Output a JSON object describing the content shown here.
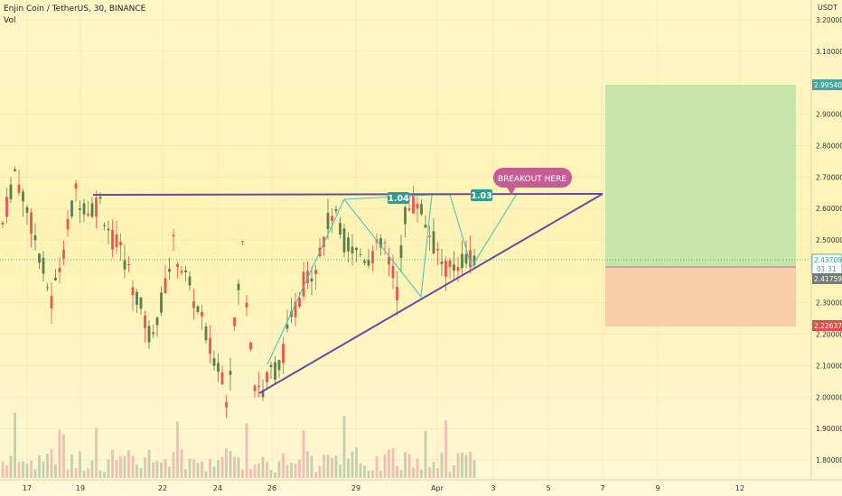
{
  "header": {
    "title": "Enjin Coin / TetherUS, 30, BINANCE",
    "volume_label": "Vol",
    "currency": "USDT"
  },
  "colors": {
    "bg_top": "#fff6c8",
    "bg_bottom": "#fdf5cf",
    "up": "#ef5350",
    "down": "#5a7f4f",
    "trendline": "#6a4aa0",
    "pattern": "#4fc0b8",
    "profit_zone": "#c5e3a7",
    "loss_zone": "#f9c9a4",
    "callout": "#c85a98",
    "label_teal": "#2e9b95"
  },
  "chart_data": {
    "type": "candlestick",
    "symbol": "Enjin Coin / TetherUS",
    "interval": "30",
    "exchange": "BINANCE",
    "x_ticks": [
      "17",
      "19",
      "22",
      "24",
      "26",
      "29",
      "Apr",
      "3",
      "5",
      "7",
      "9",
      "12"
    ],
    "y_ticks": [
      "3.20000",
      "3.10000",
      "2.90000",
      "2.80000",
      "2.70000",
      "2.60000",
      "2.50000",
      "2.30000",
      "2.20000",
      "2.10000",
      "2.00000",
      "1.90000",
      "1.80000"
    ],
    "ylim": [
      1.75,
      3.25
    ],
    "price_path": [
      [
        0,
        2.55
      ],
      [
        3,
        2.72
      ],
      [
        6,
        2.6
      ],
      [
        9,
        2.46
      ],
      [
        12,
        2.3
      ],
      [
        15,
        2.48
      ],
      [
        18,
        2.65
      ],
      [
        21,
        2.6
      ],
      [
        24,
        2.62
      ],
      [
        27,
        2.5
      ],
      [
        30,
        2.44
      ],
      [
        33,
        2.32
      ],
      [
        36,
        2.2
      ],
      [
        39,
        2.3
      ],
      [
        42,
        2.48
      ],
      [
        45,
        2.38
      ],
      [
        48,
        2.28
      ],
      [
        51,
        2.15
      ],
      [
        54,
        2.08
      ],
      [
        55,
        2.0
      ],
      [
        57,
        2.22
      ],
      [
        59,
        2.48
      ],
      [
        60,
        2.32
      ],
      [
        62,
        2.05
      ],
      [
        64,
        2.02
      ],
      [
        66,
        2.08
      ],
      [
        68,
        2.1
      ],
      [
        71,
        2.24
      ],
      [
        74,
        2.36
      ],
      [
        77,
        2.43
      ],
      [
        81,
        2.59
      ],
      [
        84,
        2.5
      ],
      [
        87,
        2.46
      ],
      [
        90,
        2.45
      ],
      [
        94,
        2.48
      ],
      [
        97,
        2.34
      ],
      [
        99,
        2.58
      ],
      [
        102,
        2.63
      ],
      [
        105,
        2.52
      ],
      [
        108,
        2.43
      ],
      [
        110,
        2.4
      ],
      [
        112,
        2.43
      ],
      [
        114,
        2.45
      ],
      [
        116,
        2.44
      ]
    ],
    "drawings": {
      "resistance_level": 2.648,
      "entry": 2.43,
      "target": 2.995,
      "stop": 2.226
    },
    "annotations": {
      "breakout": "BREAKOUT HERE",
      "ratio_1": "1.04",
      "ratio_2": "1.03"
    },
    "price_labels": {
      "target": "2.99540",
      "last": "2.43709",
      "countdown": "01:31",
      "entry": "2.41759",
      "stop": "2.22637"
    }
  }
}
